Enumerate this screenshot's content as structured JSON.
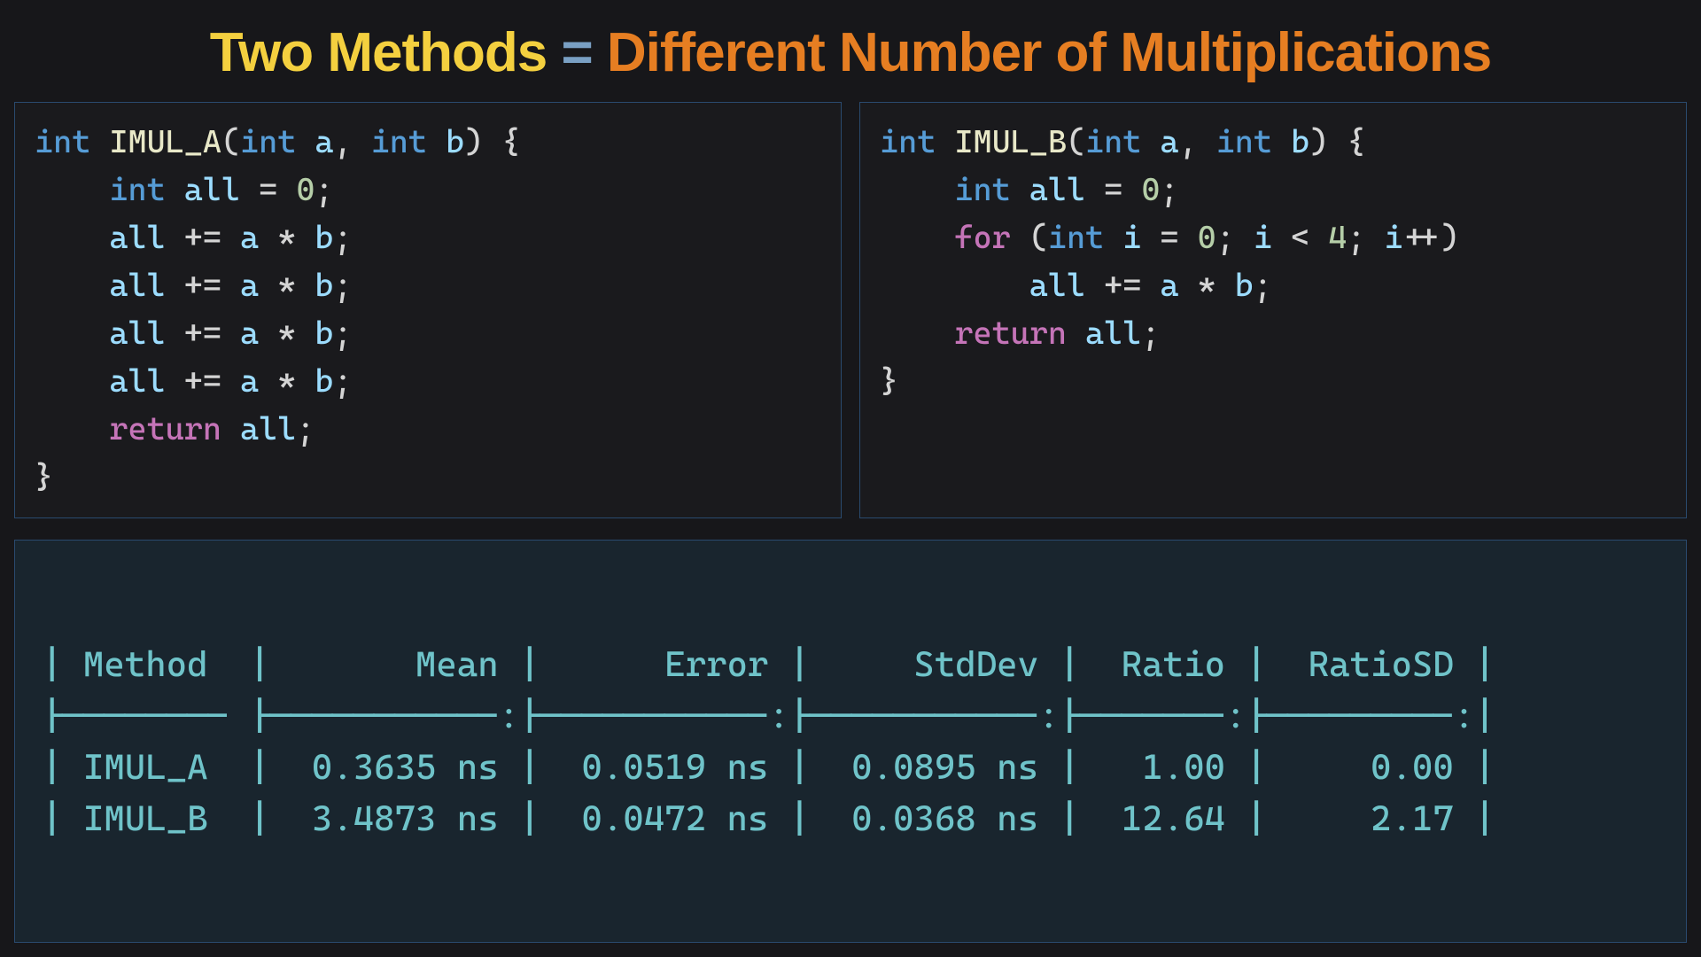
{
  "title": {
    "part1": "Two Methods",
    "eq": "=",
    "part2": "Different Number of Multiplications",
    "color_part1": "#f4d03f",
    "color_eq": "#7aa0c4",
    "color_part2": "#e67e22",
    "fontsize": 62,
    "fontweight": 800
  },
  "layout": {
    "background": "#17171a",
    "panel_border": "#2a4a6e",
    "code_bg": "#1a1a1d",
    "bench_bg": "#19252e",
    "code_fontsize": 36,
    "bench_fontsize": 40
  },
  "syntax_colors": {
    "keyword": "#569cd6",
    "function": "#e8e8c8",
    "variable": "#9cdcfe",
    "number": "#b5cea8",
    "return": "#c574b8",
    "default": "#d4d4d4"
  },
  "code_left": {
    "name": "IMUL_A",
    "tokens": [
      [
        [
          "kw",
          "int"
        ],
        [
          "punc",
          " "
        ],
        [
          "fn",
          "IMUL_A"
        ],
        [
          "punc",
          "("
        ],
        [
          "kw",
          "int"
        ],
        [
          "punc",
          " "
        ],
        [
          "var",
          "a"
        ],
        [
          "punc",
          ", "
        ],
        [
          "kw",
          "int"
        ],
        [
          "punc",
          " "
        ],
        [
          "var",
          "b"
        ],
        [
          "punc",
          ") {"
        ]
      ],
      [
        [
          "punc",
          "    "
        ],
        [
          "kw",
          "int"
        ],
        [
          "punc",
          " "
        ],
        [
          "var",
          "all"
        ],
        [
          "punc",
          " = "
        ],
        [
          "num",
          "0"
        ],
        [
          "punc",
          ";"
        ]
      ],
      [
        [
          "punc",
          "    "
        ],
        [
          "var",
          "all"
        ],
        [
          "punc",
          " += "
        ],
        [
          "var",
          "a"
        ],
        [
          "punc",
          " * "
        ],
        [
          "var",
          "b"
        ],
        [
          "punc",
          ";"
        ]
      ],
      [
        [
          "punc",
          "    "
        ],
        [
          "var",
          "all"
        ],
        [
          "punc",
          " += "
        ],
        [
          "var",
          "a"
        ],
        [
          "punc",
          " * "
        ],
        [
          "var",
          "b"
        ],
        [
          "punc",
          ";"
        ]
      ],
      [
        [
          "punc",
          "    "
        ],
        [
          "var",
          "all"
        ],
        [
          "punc",
          " += "
        ],
        [
          "var",
          "a"
        ],
        [
          "punc",
          " * "
        ],
        [
          "var",
          "b"
        ],
        [
          "punc",
          ";"
        ]
      ],
      [
        [
          "punc",
          "    "
        ],
        [
          "var",
          "all"
        ],
        [
          "punc",
          " += "
        ],
        [
          "var",
          "a"
        ],
        [
          "punc",
          " * "
        ],
        [
          "var",
          "b"
        ],
        [
          "punc",
          ";"
        ]
      ],
      [
        [
          "punc",
          "    "
        ],
        [
          "ret",
          "return"
        ],
        [
          "punc",
          " "
        ],
        [
          "var",
          "all"
        ],
        [
          "punc",
          ";"
        ]
      ],
      [
        [
          "punc",
          "}"
        ]
      ]
    ]
  },
  "code_right": {
    "name": "IMUL_B",
    "tokens": [
      [
        [
          "kw",
          "int"
        ],
        [
          "punc",
          " "
        ],
        [
          "fn",
          "IMUL_B"
        ],
        [
          "punc",
          "("
        ],
        [
          "kw",
          "int"
        ],
        [
          "punc",
          " "
        ],
        [
          "var",
          "a"
        ],
        [
          "punc",
          ", "
        ],
        [
          "kw",
          "int"
        ],
        [
          "punc",
          " "
        ],
        [
          "var",
          "b"
        ],
        [
          "punc",
          ") {"
        ]
      ],
      [
        [
          "punc",
          "    "
        ],
        [
          "kw",
          "int"
        ],
        [
          "punc",
          " "
        ],
        [
          "var",
          "all"
        ],
        [
          "punc",
          " = "
        ],
        [
          "num",
          "0"
        ],
        [
          "punc",
          ";"
        ]
      ],
      [
        [
          "punc",
          "    "
        ],
        [
          "ret",
          "for"
        ],
        [
          "punc",
          " ("
        ],
        [
          "kw",
          "int"
        ],
        [
          "punc",
          " "
        ],
        [
          "var",
          "i"
        ],
        [
          "punc",
          " = "
        ],
        [
          "num",
          "0"
        ],
        [
          "punc",
          "; "
        ],
        [
          "var",
          "i"
        ],
        [
          "punc",
          " < "
        ],
        [
          "num",
          "4"
        ],
        [
          "punc",
          "; "
        ],
        [
          "var",
          "i"
        ],
        [
          "punc",
          "++)"
        ]
      ],
      [
        [
          "punc",
          "        "
        ],
        [
          "var",
          "all"
        ],
        [
          "punc",
          " += "
        ],
        [
          "var",
          "a"
        ],
        [
          "punc",
          " * "
        ],
        [
          "var",
          "b"
        ],
        [
          "punc",
          ";"
        ]
      ],
      [
        [
          "punc",
          "    "
        ],
        [
          "ret",
          "return"
        ],
        [
          "punc",
          " "
        ],
        [
          "var",
          "all"
        ],
        [
          "punc",
          ";"
        ]
      ],
      [
        [
          "punc",
          "}"
        ]
      ]
    ]
  },
  "benchmark": {
    "text_color": "#6fc3c9",
    "columns": [
      "Method",
      "Mean",
      "Error",
      "StdDev",
      "Ratio",
      "RatioSD"
    ],
    "rows": [
      {
        "Method": "IMUL_A",
        "Mean": "0.3635 ns",
        "Error": "0.0519 ns",
        "StdDev": "0.0895 ns",
        "Ratio": "1.00",
        "RatioSD": "0.00"
      },
      {
        "Method": "IMUL_B",
        "Mean": "3.4873 ns",
        "Error": "0.0472 ns",
        "StdDev": "0.0368 ns",
        "Ratio": "12.64",
        "RatioSD": "2.17"
      }
    ],
    "col_widths": {
      "Method": 7,
      "Mean": 10,
      "Error": 10,
      "StdDev": 10,
      "Ratio": 6,
      "RatioSD": 8
    },
    "align": {
      "Method": "left",
      "Mean": "right",
      "Error": "right",
      "StdDev": "right",
      "Ratio": "right",
      "RatioSD": "right"
    }
  }
}
